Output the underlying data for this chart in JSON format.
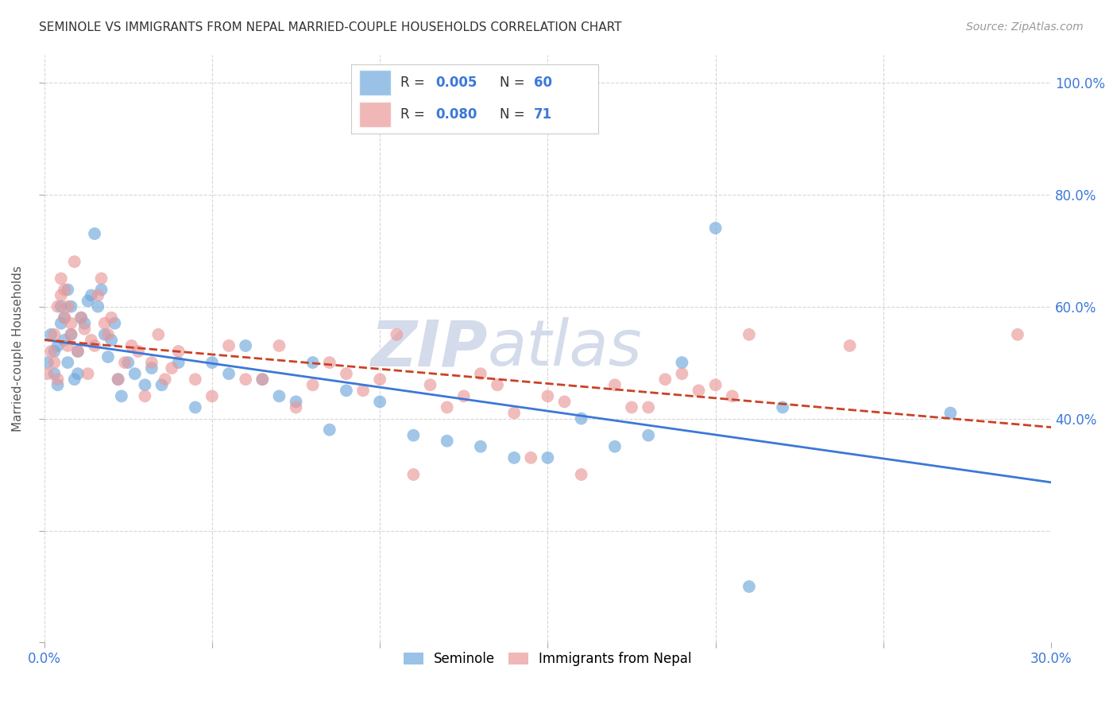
{
  "title": "SEMINOLE VS IMMIGRANTS FROM NEPAL MARRIED-COUPLE HOUSEHOLDS CORRELATION CHART",
  "source": "Source: ZipAtlas.com",
  "ylabel": "Married-couple Households",
  "xlim": [
    0.0,
    0.3
  ],
  "ylim": [
    0.0,
    1.05
  ],
  "seminole_color": "#6fa8dc",
  "nepal_color": "#ea9999",
  "seminole_line_color": "#3c78d8",
  "nepal_line_color": "#cc4125",
  "legend_R1": "0.005",
  "legend_N1": "60",
  "legend_R2": "0.080",
  "legend_N2": "71",
  "watermark_zip": "ZIP",
  "watermark_atlas": "atlas",
  "background_color": "#ffffff",
  "grid_color": "#cccccc",
  "seminole_x": [
    0.001,
    0.002,
    0.003,
    0.003,
    0.004,
    0.004,
    0.005,
    0.005,
    0.006,
    0.006,
    0.007,
    0.007,
    0.008,
    0.008,
    0.009,
    0.01,
    0.01,
    0.011,
    0.012,
    0.013,
    0.014,
    0.015,
    0.016,
    0.017,
    0.018,
    0.019,
    0.02,
    0.021,
    0.022,
    0.023,
    0.025,
    0.027,
    0.03,
    0.032,
    0.035,
    0.04,
    0.045,
    0.05,
    0.055,
    0.06,
    0.065,
    0.07,
    0.075,
    0.08,
    0.085,
    0.09,
    0.1,
    0.11,
    0.12,
    0.13,
    0.14,
    0.15,
    0.16,
    0.17,
    0.18,
    0.19,
    0.2,
    0.21,
    0.22,
    0.27
  ],
  "seminole_y": [
    0.5,
    0.55,
    0.48,
    0.52,
    0.53,
    0.46,
    0.6,
    0.57,
    0.54,
    0.58,
    0.63,
    0.5,
    0.6,
    0.55,
    0.47,
    0.52,
    0.48,
    0.58,
    0.57,
    0.61,
    0.62,
    0.73,
    0.6,
    0.63,
    0.55,
    0.51,
    0.54,
    0.57,
    0.47,
    0.44,
    0.5,
    0.48,
    0.46,
    0.49,
    0.46,
    0.5,
    0.42,
    0.5,
    0.48,
    0.53,
    0.47,
    0.44,
    0.43,
    0.5,
    0.38,
    0.45,
    0.43,
    0.37,
    0.36,
    0.35,
    0.33,
    0.33,
    0.4,
    0.35,
    0.37,
    0.5,
    0.74,
    0.1,
    0.42,
    0.41
  ],
  "nepal_x": [
    0.001,
    0.002,
    0.003,
    0.003,
    0.004,
    0.004,
    0.005,
    0.005,
    0.006,
    0.006,
    0.007,
    0.007,
    0.008,
    0.008,
    0.009,
    0.01,
    0.011,
    0.012,
    0.013,
    0.014,
    0.015,
    0.016,
    0.017,
    0.018,
    0.019,
    0.02,
    0.022,
    0.024,
    0.026,
    0.028,
    0.03,
    0.032,
    0.034,
    0.036,
    0.038,
    0.04,
    0.045,
    0.05,
    0.055,
    0.06,
    0.065,
    0.07,
    0.075,
    0.08,
    0.085,
    0.09,
    0.095,
    0.1,
    0.105,
    0.11,
    0.115,
    0.12,
    0.125,
    0.13,
    0.135,
    0.14,
    0.145,
    0.15,
    0.155,
    0.16,
    0.17,
    0.175,
    0.18,
    0.185,
    0.19,
    0.195,
    0.2,
    0.205,
    0.21,
    0.24,
    0.29
  ],
  "nepal_y": [
    0.48,
    0.52,
    0.5,
    0.55,
    0.47,
    0.6,
    0.62,
    0.65,
    0.58,
    0.63,
    0.53,
    0.6,
    0.57,
    0.55,
    0.68,
    0.52,
    0.58,
    0.56,
    0.48,
    0.54,
    0.53,
    0.62,
    0.65,
    0.57,
    0.55,
    0.58,
    0.47,
    0.5,
    0.53,
    0.52,
    0.44,
    0.5,
    0.55,
    0.47,
    0.49,
    0.52,
    0.47,
    0.44,
    0.53,
    0.47,
    0.47,
    0.53,
    0.42,
    0.46,
    0.5,
    0.48,
    0.45,
    0.47,
    0.55,
    0.3,
    0.46,
    0.42,
    0.44,
    0.48,
    0.46,
    0.41,
    0.33,
    0.44,
    0.43,
    0.3,
    0.46,
    0.42,
    0.42,
    0.47,
    0.48,
    0.45,
    0.46,
    0.44,
    0.55,
    0.53,
    0.55
  ]
}
